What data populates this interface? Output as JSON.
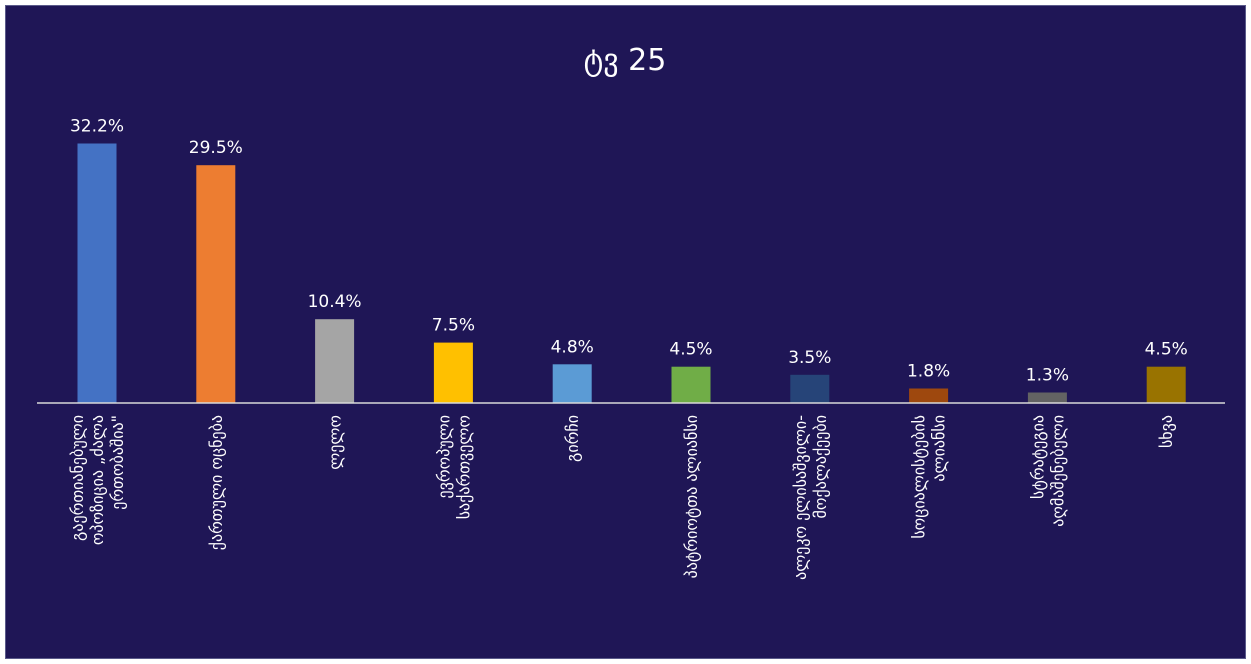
{
  "chart_data": {
    "type": "bar",
    "title": "ტვ 25",
    "categories": [
      [
        "გაერთიანებული",
        "ოპოზიცია „ძალა",
        "ერთობაშია\""
      ],
      [
        "ქართული ოცნება"
      ],
      [
        "ლელო"
      ],
      [
        "ევროპული",
        "საქართველო"
      ],
      [
        "გირჩი"
      ],
      [
        "პატრიოტთა ალიანსი"
      ],
      [
        "ალეკო ელისაშვილი-",
        "მოქალაქეები"
      ],
      [
        "სოციალისტების",
        "ალიანსი"
      ],
      [
        "სტრატეგია",
        "აღმაშენებელი"
      ],
      [
        "სხვა"
      ]
    ],
    "values": [
      32.2,
      29.5,
      10.4,
      7.5,
      4.8,
      4.5,
      3.5,
      1.8,
      1.3,
      4.5
    ],
    "value_labels": [
      "32.2%",
      "29.5%",
      "10.4%",
      "7.5%",
      "4.8%",
      "4.5%",
      "3.5%",
      "1.8%",
      "1.3%",
      "4.5%"
    ],
    "colors": [
      "#4472C4",
      "#ED7D31",
      "#A5A5A5",
      "#FFC000",
      "#5B9BD5",
      "#70AD47",
      "#264478",
      "#9E480E",
      "#636363",
      "#997300"
    ],
    "xlabel": "",
    "ylabel": "",
    "ylim": [
      0,
      33.5
    ],
    "grid": false,
    "legend": "none",
    "background": "#1F1656",
    "axis_color": "#D9D9D9"
  }
}
